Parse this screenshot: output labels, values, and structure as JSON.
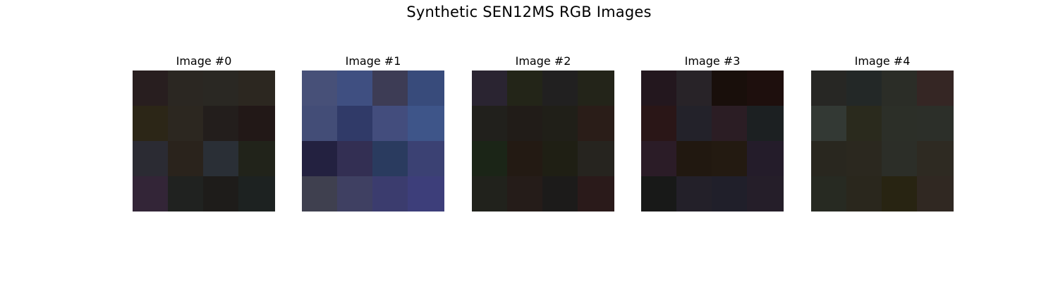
{
  "figure": {
    "title": "Synthetic SEN12MS RGB Images"
  },
  "images": [
    {
      "label": "Image #0",
      "pixels": [
        [
          "#281e1f",
          "#2b2722",
          "#2a2823",
          "#2c2720"
        ],
        [
          "#2c2617",
          "#2c2720",
          "#231e1c",
          "#221817"
        ],
        [
          "#2b2b33",
          "#2a231c",
          "#2a2f36",
          "#21231a"
        ],
        [
          "#332537",
          "#202220",
          "#1e1c1a",
          "#1d2221"
        ]
      ]
    },
    {
      "label": "Image #1",
      "pixels": [
        [
          "#475078",
          "#3f4f81",
          "#3d3c55",
          "#384b7b"
        ],
        [
          "#434d77",
          "#303a68",
          "#434d7d",
          "#3e5589"
        ],
        [
          "#232140",
          "#332f53",
          "#2a3b5f",
          "#3b4173"
        ],
        [
          "#3f404f",
          "#3f4062",
          "#3b3c6e",
          "#3d3e7a"
        ]
      ]
    },
    {
      "label": "Image #2",
      "pixels": [
        [
          "#2a2431",
          "#232518",
          "#212020",
          "#232419"
        ],
        [
          "#21201c",
          "#211c18",
          "#201f18",
          "#2a1d18"
        ],
        [
          "#1b2517",
          "#231a13",
          "#1f1f14",
          "#26241f"
        ],
        [
          "#21221c",
          "#251c19",
          "#1c1b1a",
          "#2a1a1a"
        ]
      ]
    },
    {
      "label": "Image #3",
      "pixels": [
        [
          "#23171e",
          "#282328",
          "#190f0b",
          "#1e0f0d"
        ],
        [
          "#2a1617",
          "#23222a",
          "#2b1d24",
          "#1c2022"
        ],
        [
          "#2b1c27",
          "#211810",
          "#231a11",
          "#241c2a"
        ],
        [
          "#181918",
          "#232029",
          "#201f2a",
          "#251e29"
        ]
      ]
    },
    {
      "label": "Image #4",
      "pixels": [
        [
          "#272724",
          "#232827",
          "#2b2d27",
          "#352624"
        ],
        [
          "#333934",
          "#2a2a1d",
          "#2c2f28",
          "#2c2f29"
        ],
        [
          "#29271f",
          "#2b281f",
          "#2c2e28",
          "#2e2a22"
        ],
        [
          "#272a22",
          "#2a271d",
          "#282412",
          "#302822"
        ]
      ]
    }
  ]
}
